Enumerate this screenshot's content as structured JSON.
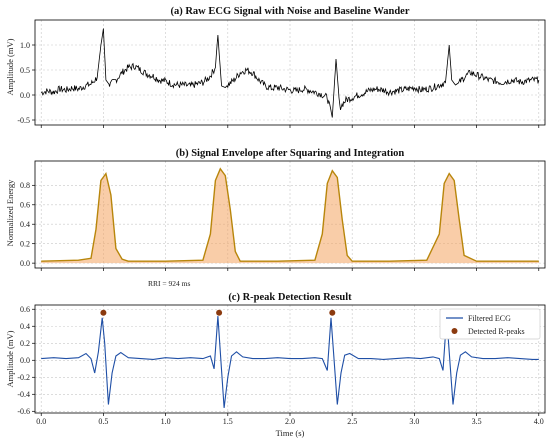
{
  "colors": {
    "raw": "#000000",
    "envelope_line": "#b8860b",
    "envelope_fill": "#f4a460",
    "filtered": "#1f4fa6",
    "peaks": "#8b3a0f",
    "grid": "#c8c8c8"
  },
  "chart_data": [
    {
      "type": "line",
      "title": "(a) Raw ECG Signal with Noise and Baseline Wander",
      "ylabel": "Amplitude (mV)",
      "xlim": [
        -0.05,
        4.05
      ],
      "ylim": [
        -0.6,
        1.5
      ],
      "yticks": [
        "-0.5",
        "0.0",
        "0.5",
        "1.0"
      ],
      "grid": true,
      "series": [
        {
          "x": [
            0,
            0.05,
            0.1,
            0.15,
            0.2,
            0.25,
            0.3,
            0.35,
            0.4,
            0.45,
            0.48,
            0.5,
            0.52,
            0.55,
            0.6,
            0.65,
            0.7,
            0.75,
            0.8,
            0.85,
            0.9,
            0.95,
            1.0,
            1.05,
            1.1,
            1.15,
            1.2,
            1.25,
            1.3,
            1.35,
            1.4,
            1.42,
            1.45,
            1.48,
            1.5,
            1.55,
            1.6,
            1.65,
            1.7,
            1.75,
            1.8,
            1.85,
            1.9,
            1.95,
            2.0,
            2.05,
            2.1,
            2.15,
            2.2,
            2.25,
            2.3,
            2.34,
            2.37,
            2.4,
            2.45,
            2.5,
            2.55,
            2.6,
            2.65,
            2.7,
            2.75,
            2.8,
            2.85,
            2.9,
            2.95,
            3.0,
            3.05,
            3.1,
            3.15,
            3.2,
            3.25,
            3.28,
            3.3,
            3.33,
            3.36,
            3.4,
            3.45,
            3.5,
            3.55,
            3.6,
            3.65,
            3.7,
            3.75,
            3.8,
            3.85,
            3.9,
            3.95,
            4.0
          ],
          "values": [
            0.05,
            0.08,
            0.06,
            0.12,
            0.1,
            0.14,
            0.12,
            0.18,
            0.22,
            0.35,
            1.0,
            1.33,
            0.3,
            0.2,
            0.3,
            0.45,
            0.55,
            0.58,
            0.5,
            0.42,
            0.38,
            0.3,
            0.28,
            0.22,
            0.2,
            0.2,
            0.18,
            0.22,
            0.25,
            0.35,
            0.55,
            1.2,
            0.18,
            0.15,
            0.2,
            0.3,
            0.45,
            0.5,
            0.45,
            0.3,
            0.18,
            0.14,
            0.15,
            0.12,
            0.1,
            0.08,
            0.12,
            0.1,
            0.06,
            0.02,
            -0.05,
            -0.45,
            0.72,
            -0.25,
            -0.1,
            -0.05,
            0.0,
            0.05,
            0.1,
            0.12,
            0.1,
            0.06,
            0.08,
            0.1,
            0.12,
            0.15,
            0.1,
            0.12,
            0.15,
            0.2,
            0.25,
            1.0,
            0.3,
            0.2,
            0.25,
            0.35,
            0.45,
            0.4,
            0.35,
            0.3,
            0.28,
            0.25,
            0.28,
            0.3,
            0.26,
            0.28,
            0.3,
            0.3
          ]
        }
      ]
    },
    {
      "type": "area",
      "title": "(b) Signal Envelope after Squaring and Integration",
      "ylabel": "Normalized Energy",
      "xlim": [
        -0.05,
        4.05
      ],
      "ylim": [
        -0.05,
        1.05
      ],
      "yticks": [
        "0.0",
        "0.2",
        "0.4",
        "0.6",
        "0.8"
      ],
      "grid": true,
      "annotation": "RRI = 924 ms",
      "series": [
        {
          "x": [
            0,
            0.3,
            0.4,
            0.44,
            0.48,
            0.52,
            0.56,
            0.6,
            0.65,
            0.7,
            1.0,
            1.3,
            1.36,
            1.4,
            1.44,
            1.48,
            1.52,
            1.56,
            1.6,
            1.9,
            2.2,
            2.26,
            2.3,
            2.34,
            2.38,
            2.42,
            2.46,
            2.5,
            2.8,
            3.1,
            3.2,
            3.24,
            3.28,
            3.32,
            3.36,
            3.4,
            3.5,
            3.8,
            4.0
          ],
          "values": [
            0.02,
            0.03,
            0.05,
            0.35,
            0.85,
            0.92,
            0.7,
            0.15,
            0.04,
            0.02,
            0.02,
            0.03,
            0.3,
            0.85,
            0.97,
            0.9,
            0.55,
            0.12,
            0.02,
            0.02,
            0.03,
            0.3,
            0.82,
            0.95,
            0.88,
            0.45,
            0.08,
            0.02,
            0.02,
            0.03,
            0.3,
            0.82,
            0.92,
            0.85,
            0.45,
            0.08,
            0.02,
            0.02,
            0.02
          ]
        }
      ]
    },
    {
      "type": "line",
      "title": "(c) R-peak Detection Result",
      "ylabel": "Amplitude (mV)",
      "xlabel": "Time (s)",
      "xlim": [
        -0.05,
        4.05
      ],
      "ylim": [
        -0.62,
        0.65
      ],
      "xticks": [
        "0.0",
        "0.5",
        "1.0",
        "1.5",
        "2.0",
        "2.5",
        "3.0",
        "3.5",
        "4.0"
      ],
      "yticks": [
        "-0.6",
        "-0.4",
        "-0.2",
        "0.0",
        "0.2",
        "0.4",
        "0.6"
      ],
      "grid": true,
      "legend_position": "top-right",
      "series": [
        {
          "name": "Filtered ECG",
          "x": [
            0,
            0.1,
            0.2,
            0.3,
            0.36,
            0.4,
            0.43,
            0.46,
            0.49,
            0.51,
            0.54,
            0.57,
            0.6,
            0.64,
            0.7,
            0.8,
            0.9,
            1.0,
            1.1,
            1.2,
            1.3,
            1.36,
            1.39,
            1.42,
            1.44,
            1.47,
            1.5,
            1.53,
            1.57,
            1.62,
            1.7,
            1.8,
            1.9,
            2.0,
            2.1,
            2.2,
            2.26,
            2.3,
            2.33,
            2.35,
            2.38,
            2.41,
            2.44,
            2.48,
            2.55,
            2.65,
            2.75,
            2.85,
            2.95,
            3.05,
            3.15,
            3.2,
            3.23,
            3.26,
            3.28,
            3.31,
            3.34,
            3.37,
            3.41,
            3.46,
            3.55,
            3.65,
            3.75,
            3.85,
            3.95,
            4.0
          ],
          "values": [
            0.02,
            0.03,
            0.02,
            0.03,
            0.08,
            0.02,
            -0.15,
            0.1,
            0.5,
            0.2,
            -0.52,
            -0.15,
            0.05,
            0.09,
            0.03,
            0.02,
            0.01,
            0.03,
            0.02,
            0.03,
            0.02,
            0.05,
            -0.1,
            0.52,
            0.1,
            -0.56,
            -0.2,
            0.05,
            0.1,
            0.04,
            0.02,
            0.02,
            0.03,
            0.02,
            0.02,
            0.03,
            0.02,
            -0.12,
            0.5,
            0.1,
            -0.52,
            -0.15,
            0.06,
            0.08,
            0.02,
            0.02,
            0.01,
            0.02,
            0.03,
            0.02,
            0.04,
            0.02,
            -0.12,
            0.52,
            0.1,
            -0.52,
            -0.15,
            0.06,
            0.1,
            0.04,
            0.02,
            0.02,
            0.03,
            0.02,
            0.01,
            0.01
          ]
        },
        {
          "name": "Detected R-peaks",
          "x": [
            0.5,
            1.43,
            2.34,
            3.27
          ],
          "values": [
            0.56,
            0.56,
            0.56,
            0.56
          ]
        }
      ]
    }
  ]
}
